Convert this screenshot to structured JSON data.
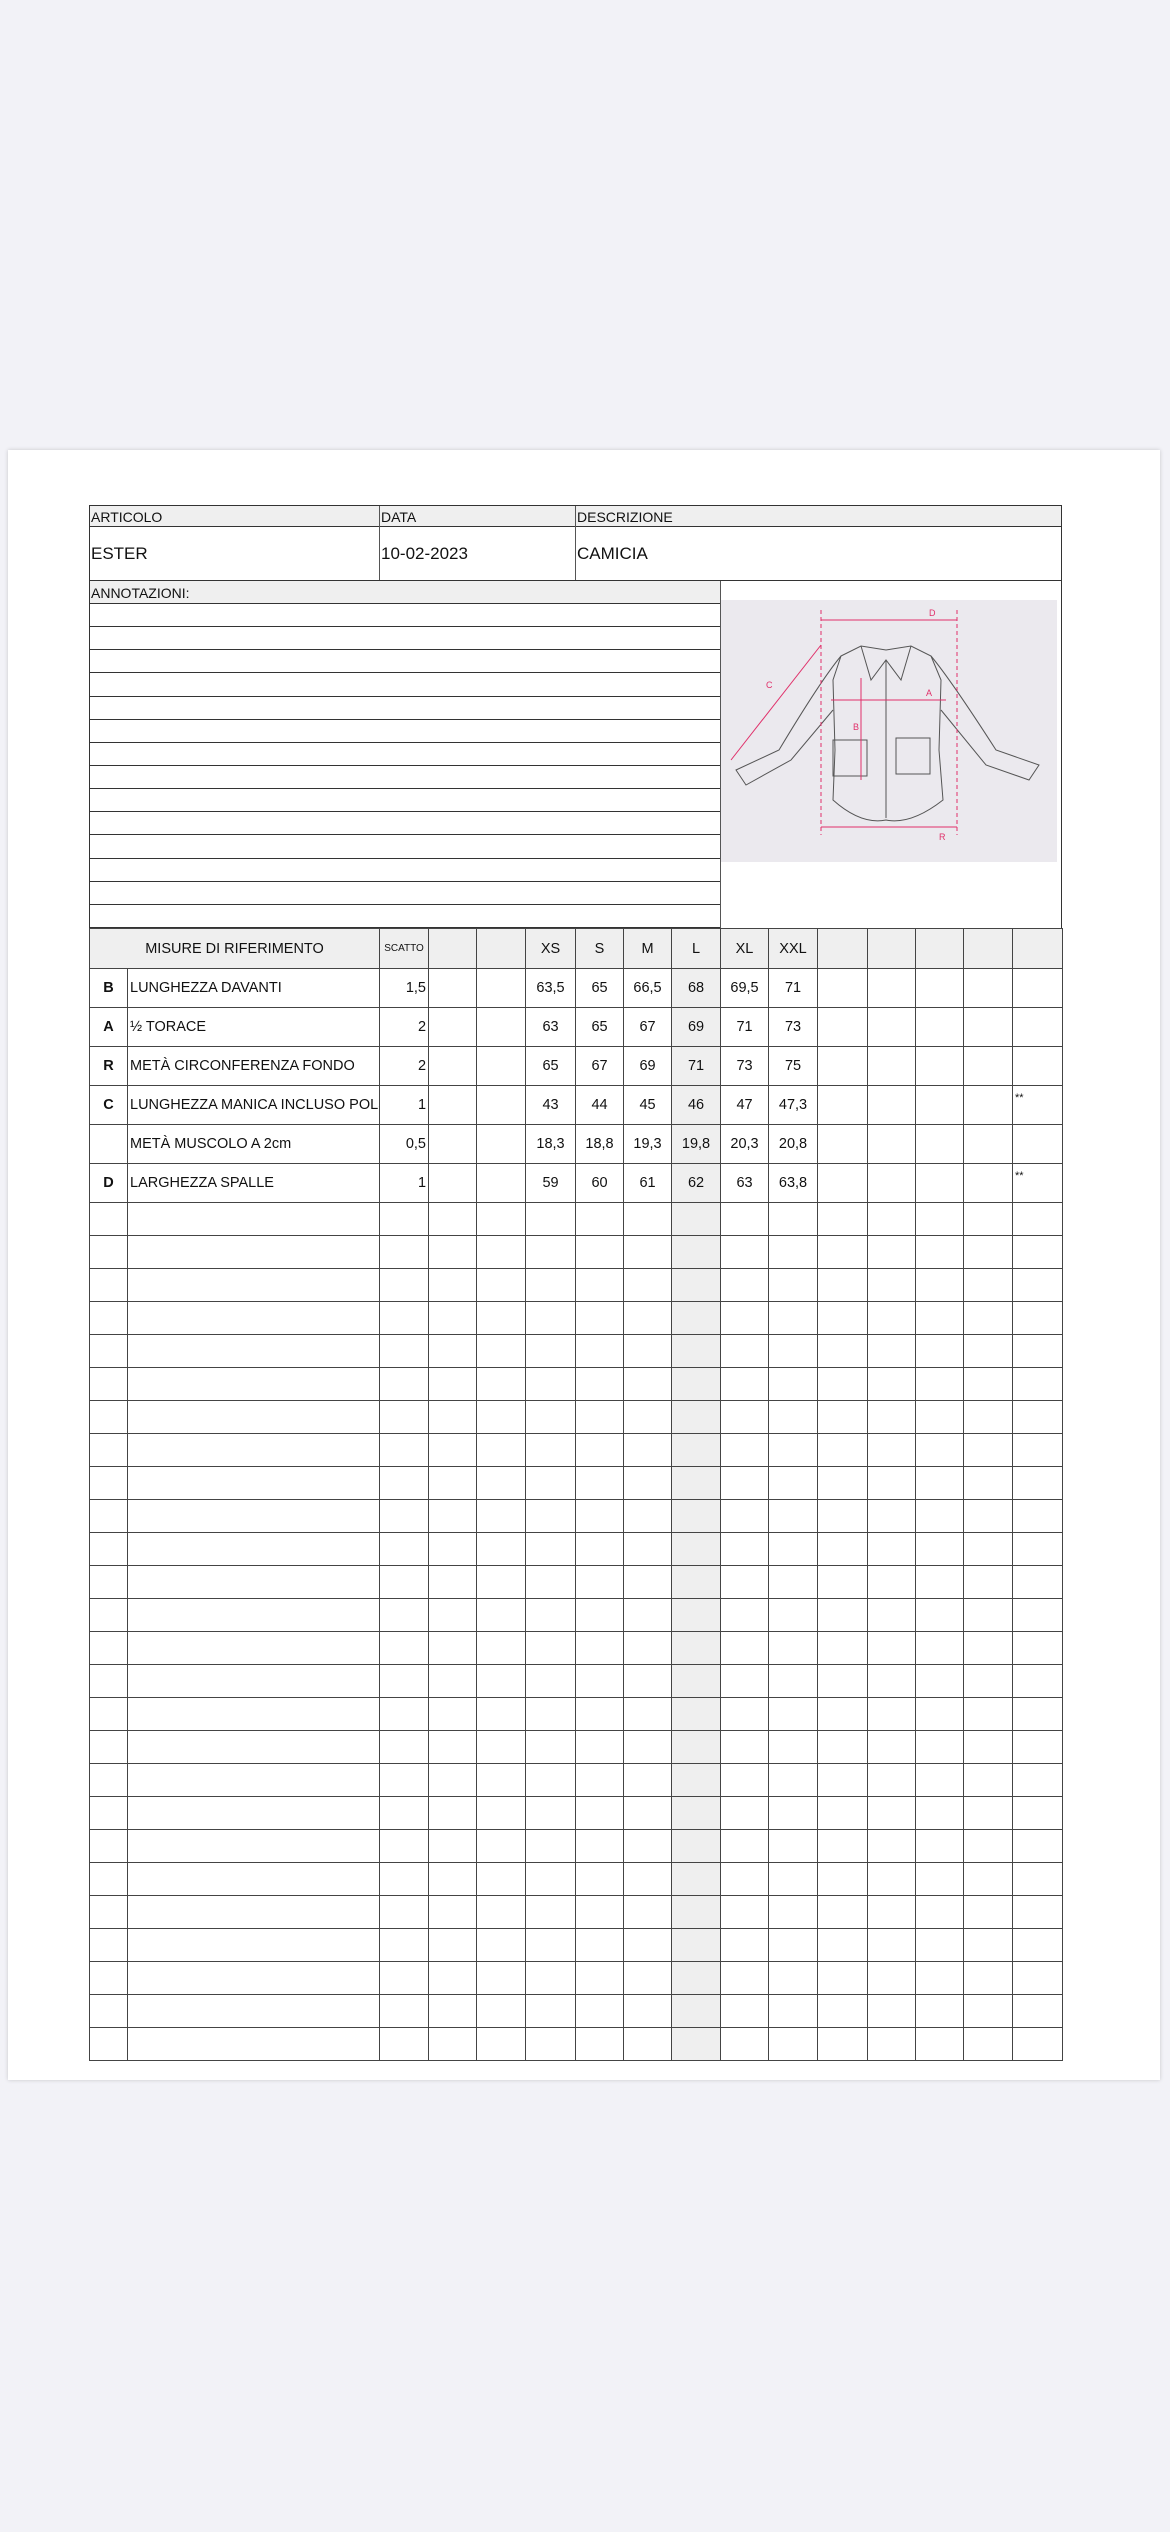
{
  "header": {
    "articolo_label": "ARTICOLO",
    "articolo_value": "ESTER",
    "data_label": "DATA",
    "data_value": "10-02-2023",
    "descrizione_label": "DESCRIZIONE",
    "descrizione_value": "CAMICIA"
  },
  "annotazioni_label": "ANNOTAZIONI:",
  "sketch": {
    "labels": [
      "D",
      "C",
      "A",
      "B",
      "R"
    ],
    "accent_color": "#e0306a"
  },
  "table": {
    "title": "MISURE DI RIFERIMENTO",
    "scatto_label": "SCATTO",
    "sizes": [
      "XS",
      "S",
      "M",
      "L",
      "XL",
      "XXL"
    ],
    "highlight_size": "L",
    "rows": [
      {
        "letter": "B",
        "name": "LUNGHEZZA DAVANTI",
        "scatto": "1,5",
        "values": [
          "63,5",
          "65",
          "66,5",
          "68",
          "69,5",
          "71"
        ],
        "note": ""
      },
      {
        "letter": "A",
        "name": "½ TORACE",
        "scatto": "2",
        "values": [
          "63",
          "65",
          "67",
          "69",
          "71",
          "73"
        ],
        "note": ""
      },
      {
        "letter": "R",
        "name": "METÀ CIRCONFERENZA FONDO",
        "scatto": "2",
        "values": [
          "65",
          "67",
          "69",
          "71",
          "73",
          "75"
        ],
        "note": ""
      },
      {
        "letter": "C",
        "name": "LUNGHEZZA MANICA INCLUSO POLS",
        "scatto": "1",
        "values": [
          "43",
          "44",
          "45",
          "46",
          "47",
          "47,3"
        ],
        "note": "**"
      },
      {
        "letter": "",
        "name": "METÀ MUSCOLO A 2cm",
        "scatto": "0,5",
        "values": [
          "18,3",
          "18,8",
          "19,3",
          "19,8",
          "20,3",
          "20,8"
        ],
        "note": ""
      },
      {
        "letter": "D",
        "name": "LARGHEZZA SPALLE",
        "scatto": "1",
        "values": [
          "59",
          "60",
          "61",
          "62",
          "63",
          "63,8"
        ],
        "note": "**"
      }
    ]
  }
}
